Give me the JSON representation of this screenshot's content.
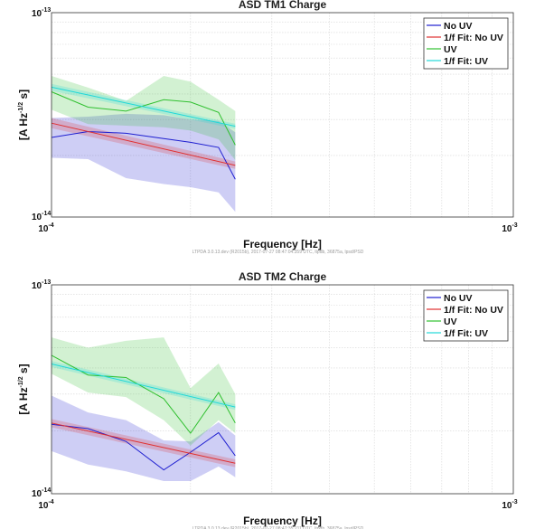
{
  "chart_data": [
    {
      "type": "line",
      "title": "ASD TM1 Charge",
      "xlabel": "Frequency  [Hz]",
      "ylabel_main": "[A Hz",
      "ylabel_exp": "-1/2",
      "ylabel_tail": " s]",
      "x_scale": "log",
      "y_scale": "log",
      "xlim": [
        0.0001,
        0.001
      ],
      "ylim": [
        1e-14,
        1e-13
      ],
      "x_tick_labels": [
        "10",
        "10"
      ],
      "x_tick_exps": [
        "-4",
        "-3"
      ],
      "y_tick_labels": [
        "10",
        "10"
      ],
      "y_tick_exps": [
        "-13",
        "-14"
      ],
      "grid": true,
      "legend_position": "top-right",
      "footer": "LTPDA 3.0.13.dev (R2015b), 2017-07-27 08:47:04.359 UTC, ltpdb, 36875a, lpsd/PSD",
      "colors": {
        "no_uv": "#1f1fd0",
        "fit_no_uv": "#e03030",
        "uv": "#30c030",
        "fit_uv": "#20d8d8"
      },
      "series": [
        {
          "name": "No UV",
          "x": [
            0.0001,
            0.00012,
            0.000145,
            0.000175,
            0.0002,
            0.00023,
            0.00025
          ],
          "y": [
            2.45e-14,
            2.62e-14,
            2.57e-14,
            2.42e-14,
            2.32e-14,
            2.19e-14,
            1.53e-14
          ],
          "band_upper": [
            3.05e-14,
            3.1e-14,
            3.2e-14,
            3.15e-14,
            3e-14,
            2.95e-14,
            2.6e-14
          ],
          "band_lower": [
            1.95e-14,
            1.92e-14,
            1.55e-14,
            1.45e-14,
            1.4e-14,
            1.32e-14,
            1.06e-14
          ]
        },
        {
          "name": "1/f Fit: No UV",
          "x": [
            0.0001,
            0.00025
          ],
          "y": [
            2.88e-14,
            1.79e-14
          ],
          "band_upper": [
            3.05e-14,
            1.87e-14
          ],
          "band_lower": [
            2.72e-14,
            1.72e-14
          ]
        },
        {
          "name": "UV",
          "x": [
            0.0001,
            0.00012,
            0.000145,
            0.000175,
            0.0002,
            0.00023,
            0.00025
          ],
          "y": [
            4.1e-14,
            3.45e-14,
            3.3e-14,
            3.75e-14,
            3.65e-14,
            3.25e-14,
            2.25e-14
          ],
          "band_upper": [
            4.9e-14,
            4.3e-14,
            3.7e-14,
            4.9e-14,
            4.6e-14,
            3.75e-14,
            3.3e-14
          ],
          "band_lower": [
            3.35e-14,
            2.85e-14,
            2.8e-14,
            2.75e-14,
            2.65e-14,
            2.4e-14,
            1.9e-14
          ]
        },
        {
          "name": "1/f Fit: UV",
          "x": [
            0.0001,
            0.00025
          ],
          "y": [
            4.32e-14,
            2.78e-14
          ],
          "band_upper": [
            4.48e-14,
            2.86e-14
          ],
          "band_lower": [
            4.15e-14,
            2.7e-14
          ]
        }
      ]
    },
    {
      "type": "line",
      "title": "ASD TM2 Charge",
      "xlabel": "Frequency  [Hz]",
      "ylabel_main": "[A Hz",
      "ylabel_exp": "-1/2",
      "ylabel_tail": " s]",
      "x_scale": "log",
      "y_scale": "log",
      "xlim": [
        0.0001,
        0.001
      ],
      "ylim": [
        1e-14,
        1e-13
      ],
      "x_tick_labels": [
        "10",
        "10"
      ],
      "x_tick_exps": [
        "-4",
        "-3"
      ],
      "y_tick_labels": [
        "10",
        "10"
      ],
      "y_tick_exps": [
        "-13",
        "-14"
      ],
      "grid": true,
      "legend_position": "top-right",
      "footer": "LTPDA 3.0.13.dev (R2015b), 2017-07-27 08:47:35.211 UTC, ltpdb, 36875a, lpsd/PSD",
      "colors": {
        "no_uv": "#1f1fd0",
        "fit_no_uv": "#e03030",
        "uv": "#30c030",
        "fit_uv": "#20d8d8"
      },
      "series": [
        {
          "name": "No UV",
          "x": [
            0.0001,
            0.00012,
            0.000145,
            0.000175,
            0.0002,
            0.00023,
            0.00025
          ],
          "y": [
            2.15e-14,
            2.05e-14,
            1.78e-14,
            1.3e-14,
            1.58e-14,
            1.96e-14,
            1.52e-14
          ],
          "band_upper": [
            2.95e-14,
            2.45e-14,
            2.25e-14,
            1.8e-14,
            1.78e-14,
            2.2e-14,
            1.9e-14
          ],
          "band_lower": [
            1.6e-14,
            1.38e-14,
            1.28e-14,
            1.15e-14,
            1.15e-14,
            1.35e-14,
            1.2e-14
          ]
        },
        {
          "name": "1/f Fit: No UV",
          "x": [
            0.0001,
            0.00025
          ],
          "y": [
            2.18e-14,
            1.4e-14
          ],
          "band_upper": [
            2.28e-14,
            1.46e-14
          ],
          "band_lower": [
            2.08e-14,
            1.34e-14
          ]
        },
        {
          "name": "UV",
          "x": [
            0.0001,
            0.00012,
            0.000145,
            0.000175,
            0.0002,
            0.00023,
            0.00025
          ],
          "y": [
            4.6e-14,
            3.7e-14,
            3.6e-14,
            2.85e-14,
            1.95e-14,
            3.05e-14,
            2.18e-14
          ],
          "band_upper": [
            5.6e-14,
            5e-14,
            5.4e-14,
            5.6e-14,
            3.2e-14,
            4.2e-14,
            3e-14
          ],
          "band_lower": [
            3.75e-14,
            3.05e-14,
            2.9e-14,
            2.25e-14,
            1.7e-14,
            2.25e-14,
            1.95e-14
          ]
        },
        {
          "name": "1/f Fit: UV",
          "x": [
            0.0001,
            0.00025
          ],
          "y": [
            4.18e-14,
            2.6e-14
          ],
          "band_upper": [
            4.32e-14,
            2.68e-14
          ],
          "band_lower": [
            4.04e-14,
            2.52e-14
          ]
        }
      ]
    }
  ]
}
